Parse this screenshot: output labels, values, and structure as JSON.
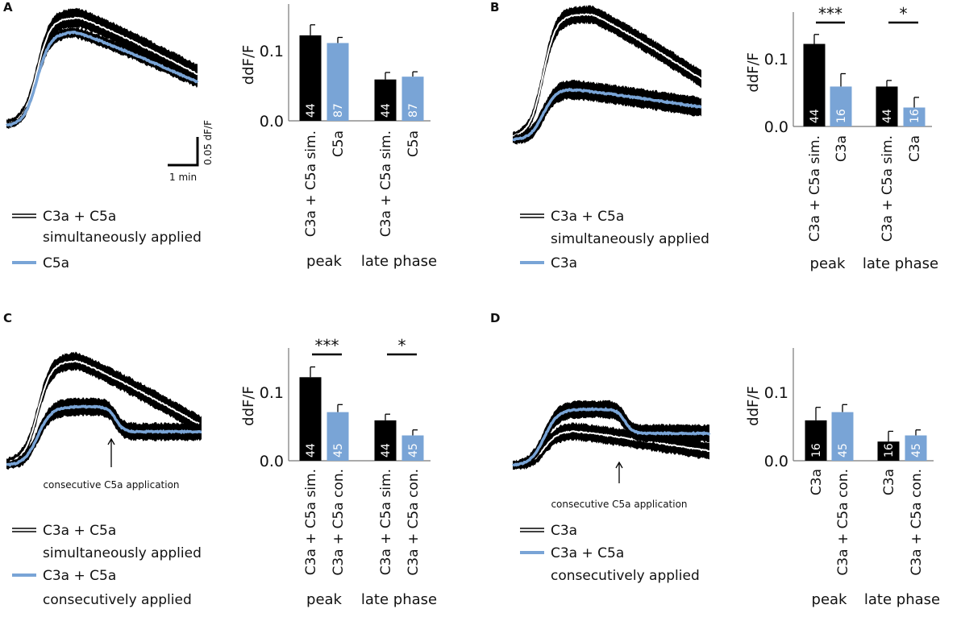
{
  "colors": {
    "black": "#000000",
    "blue": "#79a4d6",
    "axis": "#777777"
  },
  "panels": [
    {
      "letter": "A",
      "legend": [
        {
          "style": "double-black",
          "lines": [
            "C3a + C5a",
            "simultaneously applied"
          ]
        },
        {
          "style": "blue",
          "lines": [
            "C5a"
          ]
        }
      ],
      "scale_bar": {
        "vertical": "0.05 dF/F",
        "horizontal": "1 min"
      }
    },
    {
      "letter": "B",
      "legend": [
        {
          "style": "double-black",
          "lines": [
            "C3a + C5a",
            "simultaneously applied"
          ]
        },
        {
          "style": "blue",
          "lines": [
            "C3a"
          ]
        }
      ]
    },
    {
      "letter": "C",
      "annotation": "consecutive C5a application",
      "legend": [
        {
          "style": "double-black",
          "lines": [
            "C3a + C5a",
            "simultaneously applied"
          ]
        },
        {
          "style": "blue",
          "lines": [
            "C3a + C5a",
            "consecutively applied"
          ]
        }
      ]
    },
    {
      "letter": "D",
      "annotation": "consecutive C5a application",
      "legend": [
        {
          "style": "double-black",
          "lines": [
            "C3a"
          ]
        },
        {
          "style": "blue",
          "lines": [
            "C3a + C5a",
            "consecutively applied"
          ]
        }
      ]
    }
  ],
  "chart_data": [
    {
      "type": "bar",
      "panel": "A",
      "ylabel": "ddF/F",
      "yticks": [
        "0.0",
        "0.1"
      ],
      "ylim": [
        0,
        0.16
      ],
      "groups": [
        "peak",
        "late phase"
      ],
      "bars": [
        {
          "group": "peak",
          "label": "C3a + C5a sim.",
          "value": 0.122,
          "error": 0.015,
          "n": "44",
          "color": "black"
        },
        {
          "group": "peak",
          "label": "C5a",
          "value": 0.111,
          "error": 0.008,
          "n": "87",
          "color": "blue"
        },
        {
          "group": "late phase",
          "label": "C3a + C5a sim.",
          "value": 0.059,
          "error": 0.01,
          "n": "44",
          "color": "black"
        },
        {
          "group": "late phase",
          "label": "C5a",
          "value": 0.063,
          "error": 0.007,
          "n": "87",
          "color": "blue"
        }
      ],
      "significance": []
    },
    {
      "type": "bar",
      "panel": "B",
      "ylabel": "ddF/F",
      "yticks": [
        "0.0",
        "0.1"
      ],
      "ylim": [
        0,
        0.16
      ],
      "groups": [
        "peak",
        "late phase"
      ],
      "bars": [
        {
          "group": "peak",
          "label": "C3a + C5a sim.",
          "value": 0.122,
          "error": 0.014,
          "n": "44",
          "color": "black"
        },
        {
          "group": "peak",
          "label": "C3a",
          "value": 0.059,
          "error": 0.019,
          "n": "16",
          "color": "blue"
        },
        {
          "group": "late phase",
          "label": "C3a + C5a sim.",
          "value": 0.059,
          "error": 0.009,
          "n": "44",
          "color": "black"
        },
        {
          "group": "late phase",
          "label": "C3a",
          "value": 0.028,
          "error": 0.015,
          "n": "16",
          "color": "blue"
        }
      ],
      "significance": [
        {
          "group": "peak",
          "label": "***"
        },
        {
          "group": "late phase",
          "label": "*"
        }
      ]
    },
    {
      "type": "bar",
      "panel": "C",
      "ylabel": "ddF/F",
      "yticks": [
        "0.0",
        "0.1"
      ],
      "ylim": [
        0,
        0.16
      ],
      "groups": [
        "peak",
        "late phase"
      ],
      "bars": [
        {
          "group": "peak",
          "label": "C3a + C5a sim.",
          "value": 0.122,
          "error": 0.015,
          "n": "44",
          "color": "black"
        },
        {
          "group": "peak",
          "label": "C3a + C5a con.",
          "value": 0.071,
          "error": 0.011,
          "n": "45",
          "color": "blue"
        },
        {
          "group": "late phase",
          "label": "C3a + C5a sim.",
          "value": 0.059,
          "error": 0.009,
          "n": "44",
          "color": "black"
        },
        {
          "group": "late phase",
          "label": "C3a + C5a con.",
          "value": 0.037,
          "error": 0.008,
          "n": "45",
          "color": "blue"
        }
      ],
      "significance": [
        {
          "group": "peak",
          "label": "***"
        },
        {
          "group": "late phase",
          "label": "*"
        }
      ]
    },
    {
      "type": "bar",
      "panel": "D",
      "ylabel": "ddF/F",
      "yticks": [
        "0.0",
        "0.1"
      ],
      "ylim": [
        0,
        0.16
      ],
      "groups": [
        "peak",
        "late phase"
      ],
      "bars": [
        {
          "group": "peak",
          "label": "C3a",
          "value": 0.059,
          "error": 0.019,
          "n": "16",
          "color": "black"
        },
        {
          "group": "peak",
          "label": "C3a + C5a con.",
          "value": 0.071,
          "error": 0.011,
          "n": "45",
          "color": "blue"
        },
        {
          "group": "late phase",
          "label": "C3a",
          "value": 0.028,
          "error": 0.015,
          "n": "16",
          "color": "black"
        },
        {
          "group": "late phase",
          "label": "C3a + C5a con.",
          "value": 0.037,
          "error": 0.008,
          "n": "45",
          "color": "blue"
        }
      ],
      "significance": []
    }
  ]
}
